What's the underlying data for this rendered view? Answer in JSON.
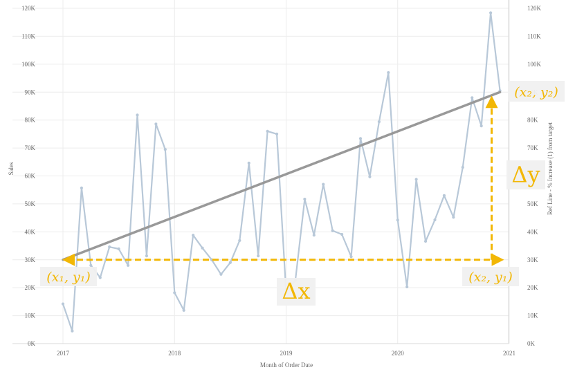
{
  "chart_data": {
    "type": "line",
    "xlabel": "Month of Order Date",
    "ylabel": "Sales",
    "y2label": "Ref Line - % Increase (1) from target",
    "x_ticks": [
      "2017",
      "2018",
      "2019",
      "2020",
      "2021"
    ],
    "y_ticks": [
      "0K",
      "10K",
      "20K",
      "30K",
      "40K",
      "50K",
      "60K",
      "70K",
      "80K",
      "90K",
      "100K",
      "110K",
      "120K"
    ],
    "ylim": [
      0,
      120000
    ],
    "xlim": [
      "2017-01",
      "2021-01"
    ],
    "grid": true,
    "colors": {
      "series": "#b8c8d8",
      "trend": "#999999",
      "annotation": "#f2b705"
    },
    "series": [
      {
        "x": [
          "2017-01",
          "2017-02",
          "2017-03",
          "2017-04",
          "2017-05",
          "2017-06",
          "2017-07",
          "2017-08",
          "2017-09",
          "2017-10",
          "2017-11",
          "2017-12",
          "2018-01",
          "2018-02",
          "2018-03",
          "2018-04",
          "2018-05",
          "2018-06",
          "2018-07",
          "2018-08",
          "2018-09",
          "2018-10",
          "2018-11",
          "2018-12",
          "2019-01",
          "2019-02",
          "2019-03",
          "2019-04",
          "2019-05",
          "2019-06",
          "2019-07",
          "2019-08",
          "2019-09",
          "2019-10",
          "2019-11",
          "2019-12",
          "2020-01",
          "2020-02",
          "2020-03",
          "2020-04",
          "2020-05",
          "2020-06",
          "2020-07",
          "2020-08",
          "2020-09",
          "2020-10",
          "2020-11",
          "2020-12"
        ],
        "values": [
          14200,
          4500,
          55700,
          28000,
          23600,
          34600,
          33900,
          28000,
          81800,
          31400,
          78600,
          69500,
          18200,
          11900,
          38800,
          34200,
          30000,
          24800,
          29000,
          36900,
          64600,
          31400,
          76000,
          75000,
          18300,
          22700,
          51700,
          38800,
          57000,
          40400,
          39100,
          31100,
          73400,
          59700,
          79400,
          97000,
          44200,
          20300,
          58800,
          36600,
          44300,
          53000,
          45200,
          63100,
          88000,
          77900,
          118400,
          90500
        ]
      },
      {
        "type": "line",
        "x": [
          "2017-01",
          "2020-12"
        ],
        "values": [
          30000,
          90000
        ]
      }
    ],
    "annotations": {
      "p1": {
        "label": "(x₁, y₁)",
        "x": "2017-01",
        "y": 30000
      },
      "p2": {
        "label": "(x₂, y₁)",
        "x": "2020-12",
        "y": 30000
      },
      "p3": {
        "label": "(x₂, y₂)",
        "x": "2020-12",
        "y": 90000
      },
      "dx_label": "Δx",
      "dy_label": "Δy"
    }
  }
}
